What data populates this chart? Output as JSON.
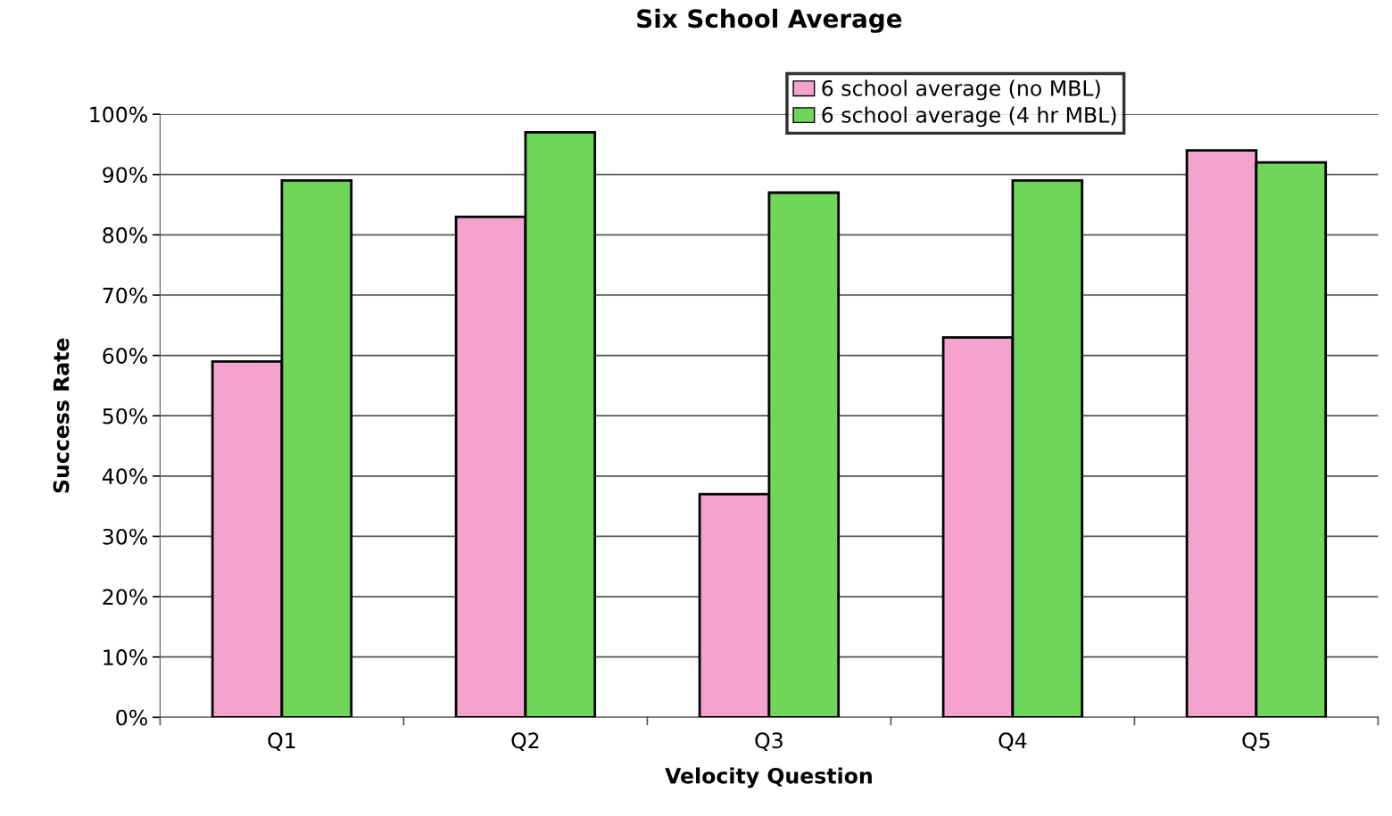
{
  "chart_data": {
    "type": "bar",
    "title": "Six School Average",
    "xlabel": "Velocity Question",
    "ylabel": "Success Rate",
    "categories": [
      "Q1",
      "Q2",
      "Q3",
      "Q4",
      "Q5"
    ],
    "series": [
      {
        "name": "6 school average (no MBL)",
        "color": "#f4a3cc",
        "values": [
          59,
          83,
          37,
          63,
          94
        ]
      },
      {
        "name": "6 school average (4 hr MBL)",
        "color": "#6fd65a",
        "values": [
          89,
          97,
          87,
          89,
          92
        ]
      }
    ],
    "ylim": [
      0,
      100
    ],
    "yticks": [
      {
        "value": 0,
        "label": "0%"
      },
      {
        "value": 10,
        "label": "10%"
      },
      {
        "value": 20,
        "label": "20%"
      },
      {
        "value": 30,
        "label": "30%"
      },
      {
        "value": 40,
        "label": "40%"
      },
      {
        "value": 50,
        "label": "50%"
      },
      {
        "value": 60,
        "label": "60%"
      },
      {
        "value": 70,
        "label": "70%"
      },
      {
        "value": 80,
        "label": "80%"
      },
      {
        "value": 90,
        "label": "90%"
      },
      {
        "value": 100,
        "label": "100%"
      }
    ],
    "grid": "y",
    "legend": "top right"
  }
}
